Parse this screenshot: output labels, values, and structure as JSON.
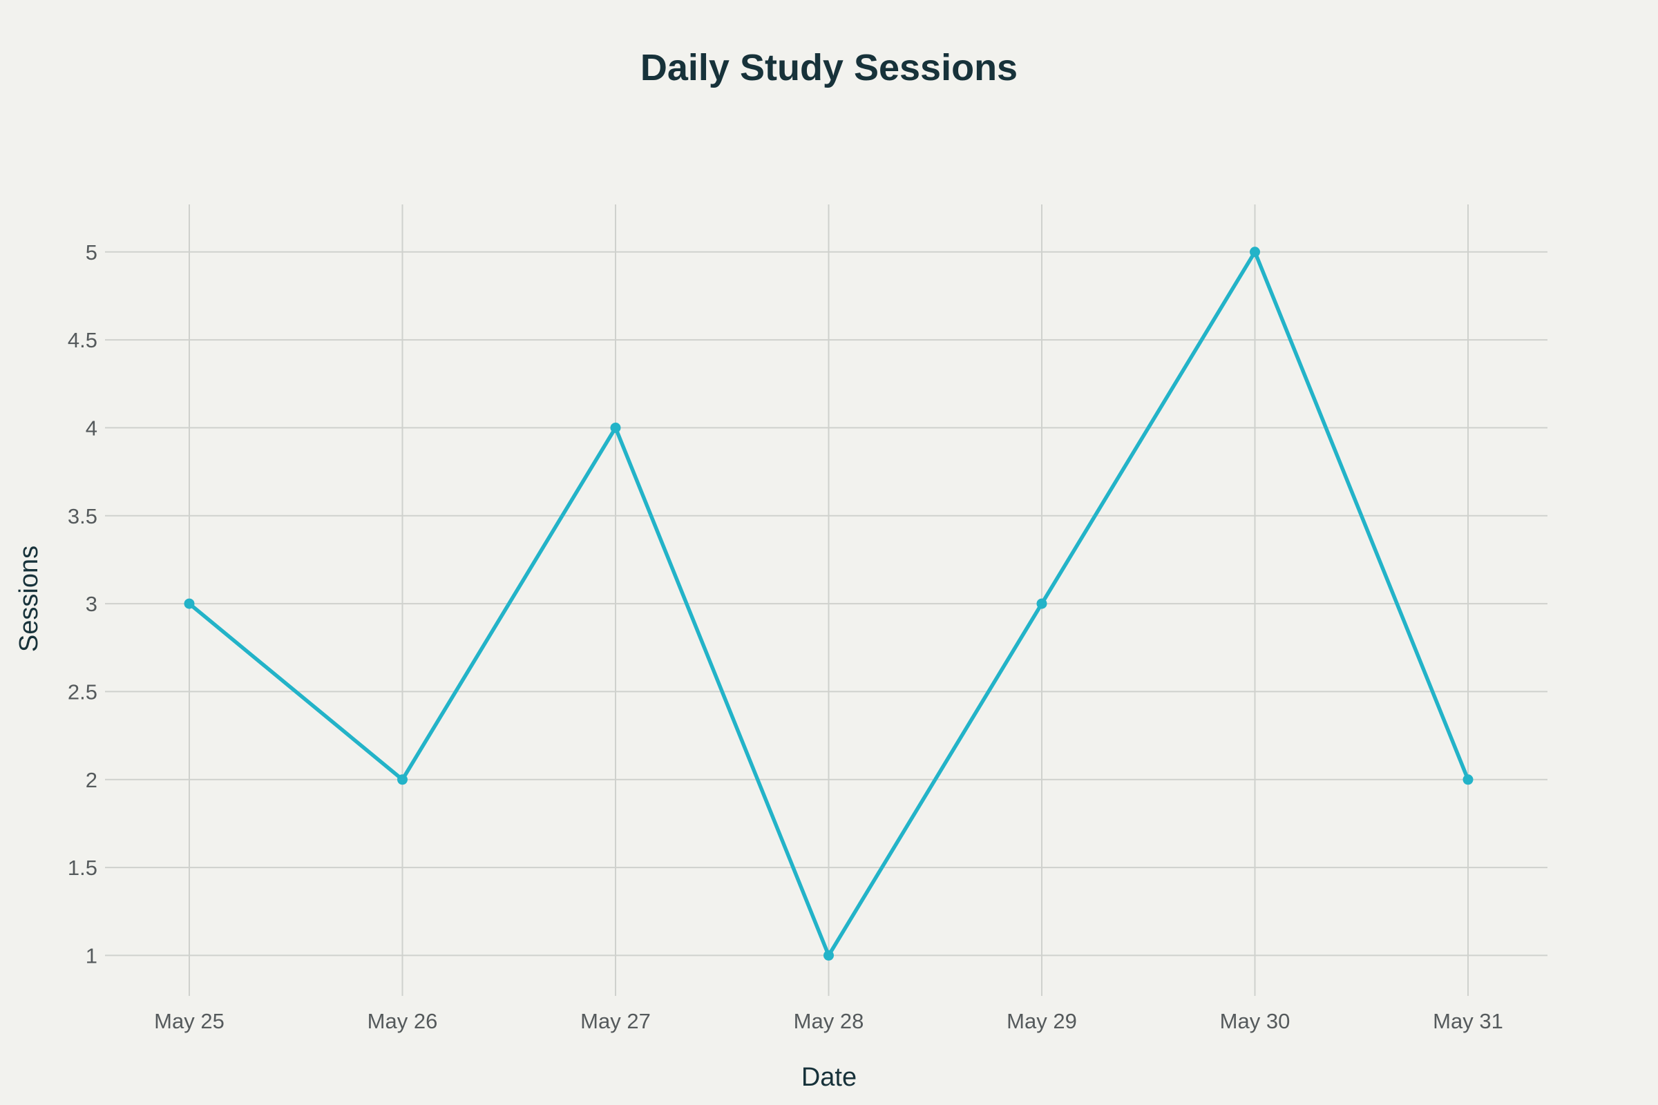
{
  "chart_data": {
    "type": "line",
    "title": "Daily Study Sessions",
    "xlabel": "Date",
    "ylabel": "Sessions",
    "categories": [
      "May 25",
      "May 26",
      "May 27",
      "May 28",
      "May 29",
      "May 30",
      "May 31"
    ],
    "series": [
      {
        "values": [
          3,
          2,
          4,
          1,
          3,
          5,
          2
        ],
        "color": "#23b3c8"
      }
    ],
    "yticks": [
      1,
      1.5,
      2,
      2.5,
      3,
      3.5,
      4,
      4.5,
      5
    ],
    "ylim": [
      0.77,
      5.27
    ],
    "grid": true,
    "legend": "none"
  }
}
